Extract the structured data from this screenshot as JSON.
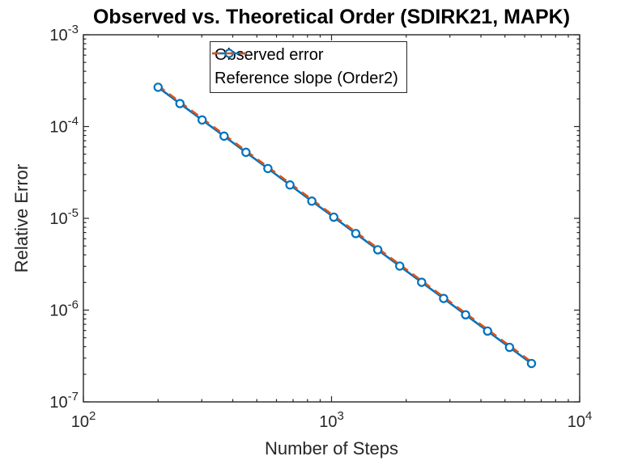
{
  "figure": {
    "background": "#ffffff"
  },
  "chart_data": {
    "type": "line",
    "title": "Observed vs. Theoretical Order (SDIRK21, MAPK)",
    "xlabel": "Number of Steps",
    "ylabel": "Relative Error",
    "x_scale": "log",
    "y_scale": "log",
    "xlim": [
      100,
      10000
    ],
    "ylim": [
      1e-07,
      0.001
    ],
    "x_ticks": [
      100,
      1000,
      10000
    ],
    "y_ticks": [
      0.001,
      0.0001,
      1e-05,
      1e-06,
      1e-07
    ],
    "grid": false,
    "box": true,
    "legend_position": "top-center-inside",
    "axis_color": "#262626",
    "series": [
      {
        "name": "Observed error",
        "color": "#0072BD",
        "line": "solid",
        "marker": "circle",
        "x": [
          200,
          245,
          301,
          369,
          452,
          554,
          680,
          833,
          1021,
          1252,
          1536,
          1883,
          2308,
          2830,
          3470,
          4254,
          5216,
          6396
        ],
        "y": [
          0.000268,
          0.000178,
          0.000118,
          7.86e-05,
          5.24e-05,
          3.49e-05,
          2.31e-05,
          1.54e-05,
          1.03e-05,
          6.83e-06,
          4.54e-06,
          3.02e-06,
          2.01e-06,
          1.34e-06,
          8.89e-07,
          5.91e-07,
          3.93e-07,
          2.62e-07
        ]
      },
      {
        "name": "Reference slope (Order2)",
        "color": "#D95319",
        "line": "dashed",
        "marker": "none",
        "x": [
          200,
          6396
        ],
        "y": [
          0.000278,
          2.72e-07
        ]
      }
    ]
  }
}
